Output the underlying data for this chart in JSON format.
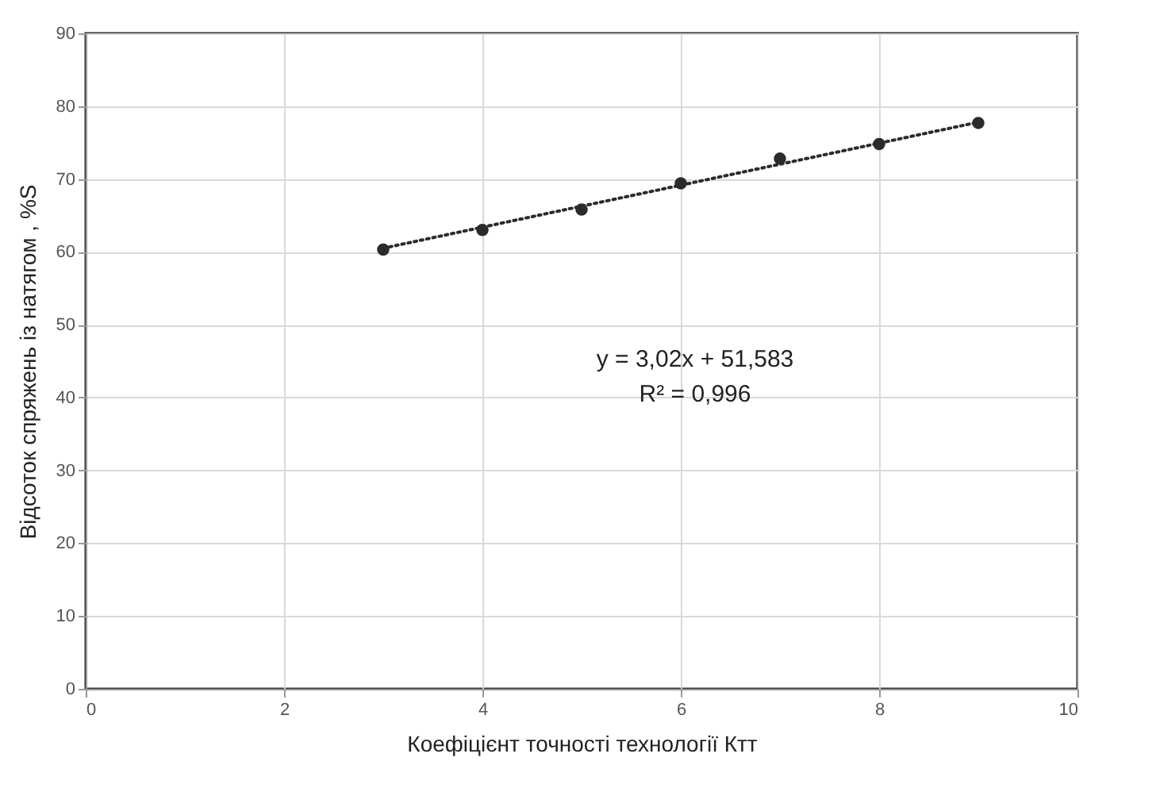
{
  "chart_data": {
    "type": "scatter",
    "xlabel": "Коефіцієнт точності технології Ктт",
    "ylabel": "Відсоток спряжень із натягом , %S",
    "xlim": [
      0,
      10
    ],
    "xticks": [
      0,
      2,
      4,
      6,
      8,
      10
    ],
    "ylim": [
      0,
      90
    ],
    "yticks": [
      0,
      10,
      20,
      30,
      40,
      50,
      60,
      70,
      80,
      90
    ],
    "grid": true,
    "marker": "circle",
    "annotations": [
      "y = 3,02x + 51,583",
      "R² = 0,996"
    ],
    "series": [
      {
        "color": "#2b2b2b",
        "x": [
          3,
          4,
          5,
          6,
          7,
          8,
          9
        ],
        "values": [
          60.3,
          63,
          65.8,
          69.4,
          72.8,
          74.8,
          77.7
        ]
      },
      {
        "type": "line",
        "color": "#2b2b2b",
        "line_style": "dotted",
        "marker": "none",
        "x": [
          3,
          9
        ],
        "values": [
          60.5,
          77.8
        ]
      }
    ]
  }
}
